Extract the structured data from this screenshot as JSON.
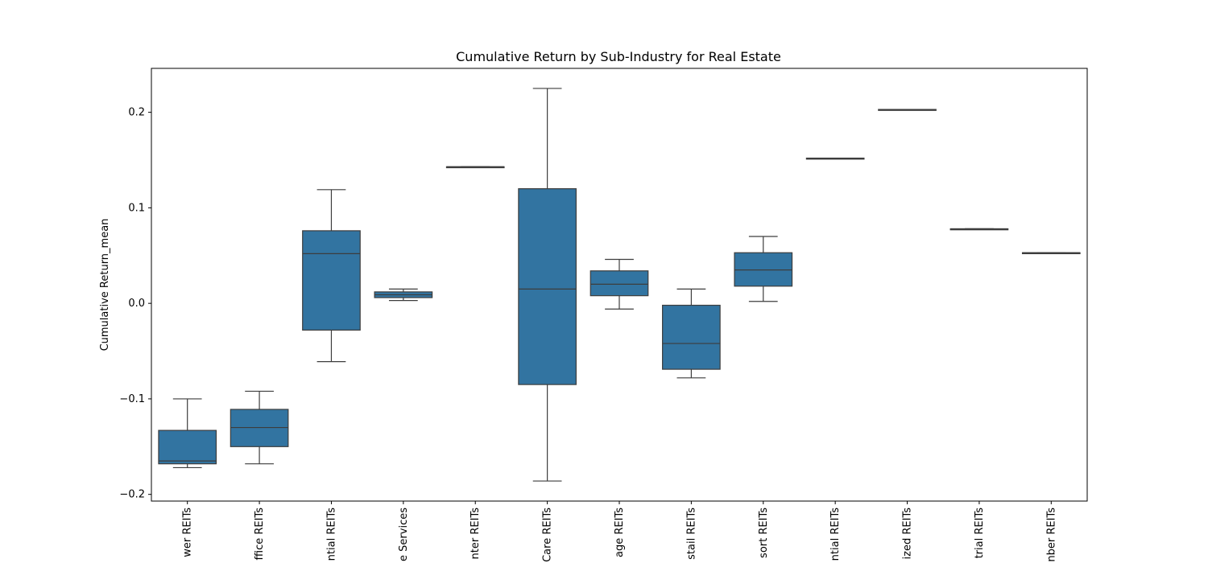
{
  "chart_data": {
    "type": "box",
    "title": "Cumulative Return by Sub-Industry for Real Estate",
    "xlabel": "",
    "ylabel": "Cumulative Return_mean",
    "ylim": [
      -0.207,
      0.246
    ],
    "yticks": [
      -0.2,
      -0.1,
      0.0,
      0.1,
      0.2
    ],
    "ytick_labels": [
      "−0.2",
      "−0.1",
      "0.0",
      "0.1",
      "0.2"
    ],
    "categories": [
      "wer REITs",
      "ffice REITs",
      "ntial REITs",
      "e Services",
      "nter REITs",
      "Care REITs",
      "age REITs",
      "stail REITs",
      "sort REITs",
      "ntial REITs",
      "ized REITs",
      "trial REITs",
      "nber REITs"
    ],
    "boxes": [
      {
        "whisker_low": -0.172,
        "q1": -0.168,
        "median": -0.165,
        "q3": -0.133,
        "whisker_high": -0.1
      },
      {
        "whisker_low": -0.168,
        "q1": -0.15,
        "median": -0.13,
        "q3": -0.111,
        "whisker_high": -0.092
      },
      {
        "whisker_low": -0.061,
        "q1": -0.028,
        "median": 0.052,
        "q3": 0.076,
        "whisker_high": 0.119
      },
      {
        "whisker_low": 0.003,
        "q1": 0.006,
        "median": 0.009,
        "q3": 0.012,
        "whisker_high": 0.015
      },
      {
        "whisker_low": 0.143,
        "q1": 0.143,
        "median": 0.143,
        "q3": 0.143,
        "whisker_high": 0.143
      },
      {
        "whisker_low": -0.186,
        "q1": -0.085,
        "median": 0.015,
        "q3": 0.12,
        "whisker_high": 0.225
      },
      {
        "whisker_low": -0.006,
        "q1": 0.008,
        "median": 0.02,
        "q3": 0.034,
        "whisker_high": 0.046
      },
      {
        "whisker_low": -0.078,
        "q1": -0.069,
        "median": -0.042,
        "q3": -0.002,
        "whisker_high": 0.015
      },
      {
        "whisker_low": 0.002,
        "q1": 0.018,
        "median": 0.035,
        "q3": 0.053,
        "whisker_high": 0.07
      },
      {
        "whisker_low": 0.152,
        "q1": 0.152,
        "median": 0.152,
        "q3": 0.152,
        "whisker_high": 0.152
      },
      {
        "whisker_low": 0.203,
        "q1": 0.203,
        "median": 0.203,
        "q3": 0.203,
        "whisker_high": 0.203
      },
      {
        "whisker_low": 0.078,
        "q1": 0.078,
        "median": 0.078,
        "q3": 0.078,
        "whisker_high": 0.078
      },
      {
        "whisker_low": 0.053,
        "q1": 0.053,
        "median": 0.053,
        "q3": 0.053,
        "whisker_high": 0.053
      }
    ],
    "box_color": "#3274a1",
    "line_color": "#3d3d3d",
    "grid": false,
    "legend": "none"
  }
}
